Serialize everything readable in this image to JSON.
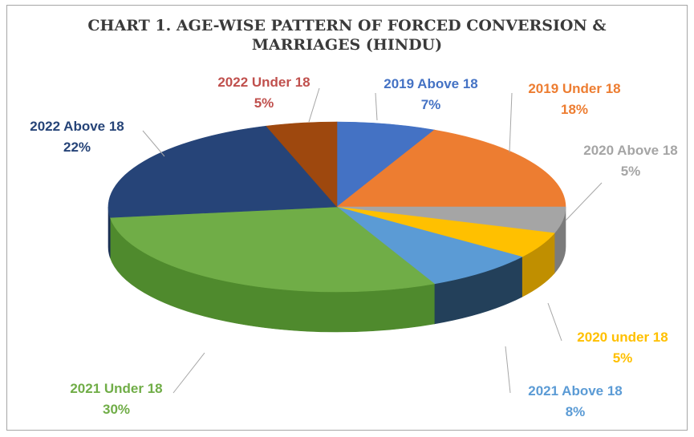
{
  "chart_data": {
    "type": "pie",
    "title_lines": [
      "CHART 1. AGE-WISE PATTERN OF FORCED CONVERSION &",
      "MARRIAGES (HINDU)"
    ],
    "slices": [
      {
        "label": "2019 Above 18",
        "value": 7,
        "value_label": "7%",
        "color": "#4472c4",
        "side": "#2f5597",
        "label_color": "#4472c4"
      },
      {
        "label": "2019 Under 18",
        "value": 18,
        "value_label": "18%",
        "color": "#ed7d31",
        "side": "#b35a1f",
        "label_color": "#ed7d31"
      },
      {
        "label": "2020 Above 18",
        "value": 5,
        "value_label": "5%",
        "color": "#a5a5a5",
        "side": "#7b7b7b",
        "label_color": "#a5a5a5"
      },
      {
        "label": "2020 under 18",
        "value": 5,
        "value_label": "5%",
        "color": "#ffc000",
        "side": "#c08f00",
        "label_color": "#ffc000"
      },
      {
        "label": "2021 Above 18",
        "value": 8,
        "value_label": "8%",
        "color": "#5b9bd5",
        "side": "#23405a",
        "label_color": "#5b9bd5"
      },
      {
        "label": "2021 Under 18",
        "value": 30,
        "value_label": "30%",
        "color": "#70ad47",
        "side": "#4f8a2d",
        "label_color": "#70ad47"
      },
      {
        "label": "2022 Above 18",
        "value": 22,
        "value_label": "22%",
        "color": "#264478",
        "side": "#1a2f55",
        "label_color": "#264478"
      },
      {
        "label": "2022 Under 18",
        "value": 5,
        "value_label": "5%",
        "color": "#9e480e",
        "side": "#6e320a",
        "label_color": "#c0504d"
      }
    ]
  }
}
